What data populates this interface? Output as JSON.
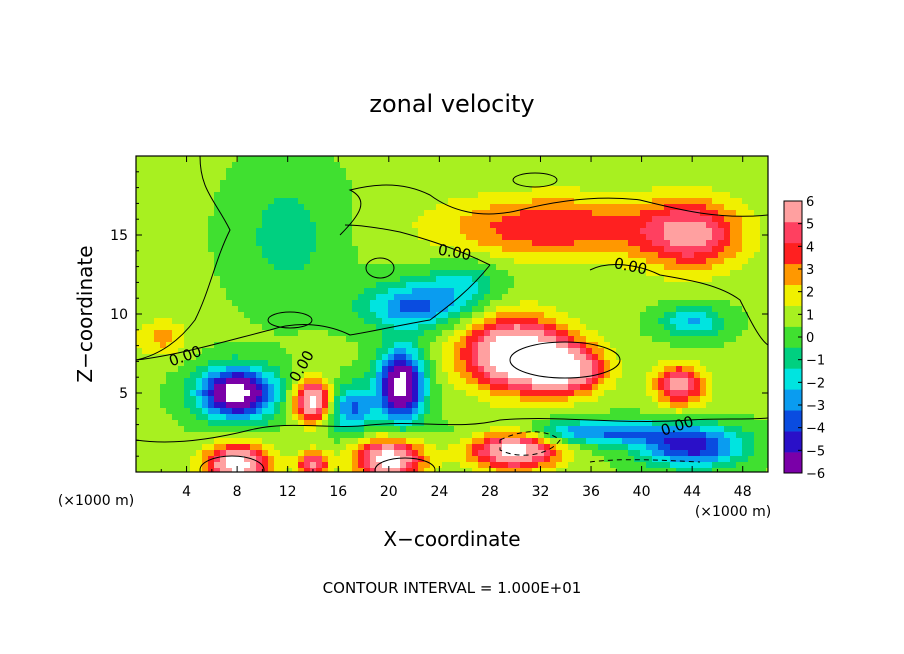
{
  "chart_data": {
    "type": "heatmap",
    "title": "zonal velocity",
    "xlabel": "X−coordinate",
    "ylabel": "Z−coordinate",
    "x_unit": "(×1000 m)",
    "z_unit": "(×1000 m)",
    "xlim": [
      0,
      50
    ],
    "ylim": [
      0,
      20
    ],
    "x_ticks": [
      4,
      8,
      12,
      16,
      20,
      24,
      28,
      32,
      36,
      40,
      44,
      48
    ],
    "y_ticks": [
      5,
      10,
      15
    ],
    "colorbar": {
      "ticks": [
        6,
        5,
        4,
        3,
        2,
        1,
        0,
        -1,
        -2,
        -3,
        -4,
        -5,
        -6
      ],
      "tick_labels": [
        "6",
        "5",
        "4",
        "3",
        "2",
        "1",
        "0",
        "−1",
        "−2",
        "−3",
        "−4",
        "−5",
        "−6"
      ],
      "range": [
        -6,
        6
      ],
      "colors": [
        "#7a00a8",
        "#2a10c8",
        "#0a4ce0",
        "#0a9cf0",
        "#00e4e0",
        "#00d080",
        "#40e030",
        "#a8f020",
        "#f0f000",
        "#ff9800",
        "#ff2020",
        "#ff4060",
        "#ffa0a0"
      ]
    },
    "contour_labels": [
      "0.00",
      "0.00",
      "0.00",
      "0.00",
      "0.00"
    ],
    "field_features": [
      {
        "x": 30,
        "z": 7.5,
        "value": 8,
        "sx": 4,
        "sz": 2.2
      },
      {
        "x": 34,
        "z": 6.5,
        "value": 6,
        "sx": 3,
        "sz": 1.5
      },
      {
        "x": 30,
        "z": 1.5,
        "value": 7,
        "sx": 3.5,
        "sz": 1.3
      },
      {
        "x": 8,
        "z": 0.5,
        "value": 7,
        "sx": 2.5,
        "sz": 1.2
      },
      {
        "x": 20,
        "z": 0.8,
        "value": 7,
        "sx": 2.6,
        "sz": 1.3
      },
      {
        "x": 14,
        "z": 0.5,
        "value": 5,
        "sx": 1.2,
        "sz": 0.8
      },
      {
        "x": 14,
        "z": 4.5,
        "value": 7,
        "sx": 1.5,
        "sz": 1.3
      },
      {
        "x": 43,
        "z": 5.5,
        "value": 5,
        "sx": 2,
        "sz": 1.3
      },
      {
        "x": 44,
        "z": 15,
        "value": 4.5,
        "sx": 4,
        "sz": 2.2
      },
      {
        "x": 33,
        "z": 15.5,
        "value": 3.5,
        "sx": 9,
        "sz": 2.0
      },
      {
        "x": 8,
        "z": 5,
        "value": -8,
        "sx": 3,
        "sz": 1.6
      },
      {
        "x": 21,
        "z": 5.5,
        "value": -8,
        "sx": 1.8,
        "sz": 2.2
      },
      {
        "x": 17,
        "z": 4,
        "value": -4,
        "sx": 2,
        "sz": 1.5
      },
      {
        "x": 22,
        "z": 10.5,
        "value": -4,
        "sx": 4,
        "sz": 1.5
      },
      {
        "x": 26,
        "z": 12,
        "value": -2,
        "sx": 3,
        "sz": 1.5
      },
      {
        "x": 12,
        "z": 15,
        "value": -1.5,
        "sx": 4,
        "sz": 4
      },
      {
        "x": 44,
        "z": 9.5,
        "value": -3,
        "sx": 2.5,
        "sz": 1
      },
      {
        "x": 2,
        "z": 8.5,
        "value": 2,
        "sx": 2,
        "sz": 1.2
      },
      {
        "x": 36,
        "z": 2.5,
        "value": -4,
        "sx": 8,
        "sz": 0.8
      },
      {
        "x": 44,
        "z": 1.5,
        "value": -5,
        "sx": 4,
        "sz": 1.2
      }
    ],
    "background_value": 0.6,
    "footer": "CONTOUR INTERVAL = 1.000E+01"
  }
}
